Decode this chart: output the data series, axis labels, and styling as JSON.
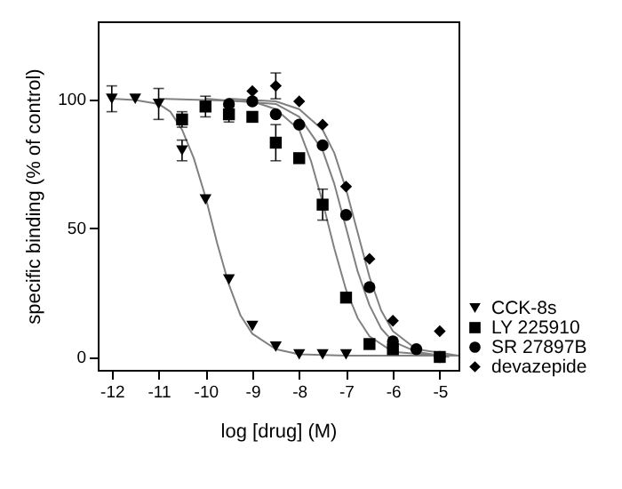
{
  "chart_data": {
    "type": "scatter",
    "xlabel": "log [drug] (M)",
    "ylabel": "specific binding (% of control)",
    "xlim": [
      -12.3,
      -4.6
    ],
    "ylim": [
      -5,
      130
    ],
    "xticks": [
      -12,
      -11,
      -10,
      -9,
      -8,
      -7,
      -6,
      -5
    ],
    "yticks": [
      0,
      50,
      100
    ],
    "grid": false,
    "legend": "right",
    "series": [
      {
        "name": "CCK-8s",
        "color": "#000000",
        "marker": "triangle",
        "x": [
          -12,
          -11.5,
          -11,
          -10.5,
          -10,
          -9.5,
          -9,
          -8.5,
          -8,
          -7.5,
          -7
        ],
        "values": [
          100,
          100,
          98,
          80,
          61,
          30,
          12,
          4,
          1,
          1,
          1
        ],
        "errors": [
          5,
          null,
          6,
          4,
          null,
          null,
          null,
          null,
          null,
          null,
          null
        ]
      },
      {
        "name": "LY 225910",
        "color": "#000000",
        "marker": "square",
        "x": [
          -10.5,
          -10,
          -9.5,
          -9,
          -8.5,
          -8,
          -7.5,
          -7,
          -6.5,
          -6,
          -5.5,
          -5
        ],
        "values": [
          92,
          97,
          94,
          93,
          83,
          77,
          59,
          23,
          5,
          3,
          null,
          0
        ],
        "errors": [
          3,
          4,
          3,
          null,
          7,
          null,
          6,
          null,
          null,
          null,
          null,
          null
        ]
      },
      {
        "name": "SR 27897B",
        "color": "#000000",
        "marker": "circle",
        "x": [
          -9.5,
          -9,
          -8.5,
          -8,
          -7.5,
          -7,
          -6.5,
          -6,
          -5.5,
          -5
        ],
        "values": [
          98,
          99,
          94,
          90,
          82,
          55,
          27,
          6,
          3,
          0
        ]
      },
      {
        "name": "devazepide",
        "color": "#000000",
        "marker": "diamond",
        "x": [
          -9,
          -8.5,
          -8,
          -7.5,
          -7,
          -6.5,
          -6,
          -5.5,
          -5
        ],
        "values": [
          103,
          105,
          99,
          90,
          66,
          38,
          14,
          null,
          10
        ],
        "errors": [
          null,
          5,
          null,
          null,
          null,
          null,
          null,
          null,
          null
        ]
      },
      {
        "type": "line",
        "color": "#808080",
        "marker": "none",
        "x": [
          -12,
          -11.5,
          -11,
          -10.75,
          -10.5,
          -10.25,
          -10,
          -9.75,
          -9.5,
          -9.25,
          -9,
          -8.5,
          -8,
          -7,
          -4.6
        ],
        "values": [
          100,
          99.5,
          98,
          95,
          88,
          77,
          62,
          44,
          28,
          16,
          9,
          3,
          1,
          0.5,
          0.5
        ]
      },
      {
        "type": "line",
        "color": "#808080",
        "marker": "none",
        "x": [
          -11,
          -9,
          -8.5,
          -8,
          -7.75,
          -7.5,
          -7.25,
          -7,
          -6.75,
          -6.5,
          -6,
          -5
        ],
        "values": [
          100,
          99,
          96,
          88,
          76,
          60,
          42,
          26,
          15,
          8,
          2,
          0.5
        ]
      },
      {
        "type": "line",
        "color": "#808080",
        "marker": "none",
        "x": [
          -10,
          -8.5,
          -8,
          -7.5,
          -7.25,
          -7,
          -6.75,
          -6.5,
          -6.25,
          -6,
          -5.5,
          -4.8
        ],
        "values": [
          100,
          98,
          93,
          80,
          67,
          50,
          33,
          20,
          11,
          6,
          2,
          0
        ]
      },
      {
        "type": "line",
        "color": "#808080",
        "marker": "none",
        "x": [
          -9.5,
          -8.5,
          -8,
          -7.5,
          -7.25,
          -7,
          -6.75,
          -6.5,
          -6.25,
          -6,
          -5.5,
          -4.6
        ],
        "values": [
          100,
          99,
          96,
          88,
          79,
          65,
          48,
          31,
          18,
          10,
          3,
          0.5
        ]
      }
    ]
  }
}
